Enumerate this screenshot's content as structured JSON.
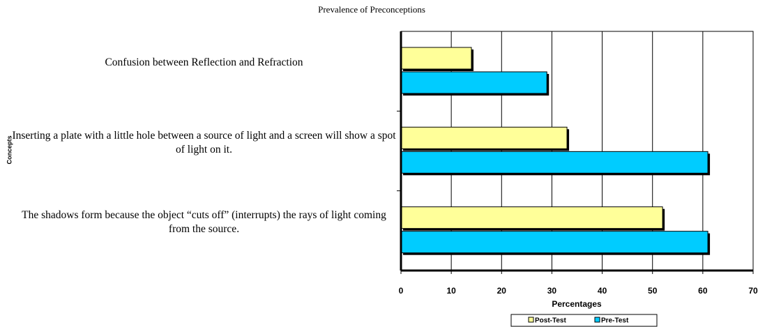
{
  "chart_data": {
    "type": "barh",
    "title": "Prevalence of Preconceptions",
    "categories": [
      "Confusion between Reflection and Refraction",
      "Inserting a plate with a little hole between a source of light and a screen will show a spot of light on it.",
      "The shadows form because the object “cuts off” (interrupts) the rays of light coming from the source."
    ],
    "series": [
      {
        "name": "Post-Test",
        "color": "#ffff99",
        "values": [
          14,
          33,
          52
        ]
      },
      {
        "name": "Pre-Test",
        "color": "#00ccff",
        "values": [
          29,
          61,
          61
        ]
      }
    ],
    "xlabel": "Percentages",
    "ylabel": "Concepts",
    "xlim": [
      0,
      70
    ],
    "xticks": [
      0,
      10,
      20,
      30,
      40,
      50,
      60,
      70
    ],
    "grid": true,
    "legend": "bottom"
  }
}
